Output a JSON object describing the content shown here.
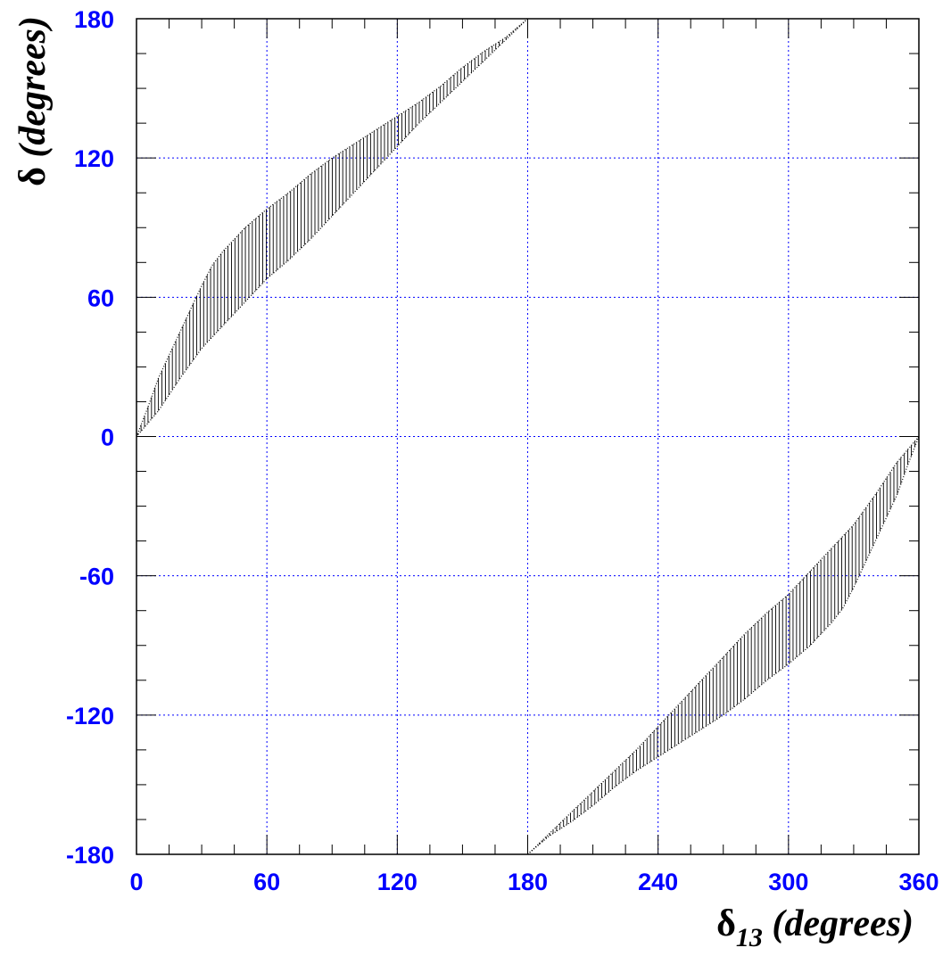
{
  "chart_data": {
    "type": "area",
    "xlabel": "δ13 (degrees)",
    "xlabel_parts": {
      "symbol": "δ",
      "subscript": "13",
      "rest": "(degrees)"
    },
    "ylabel": "δ (degrees)",
    "ylabel_parts": {
      "symbol": "δ",
      "rest": "(degrees)"
    },
    "xlim": [
      0,
      360
    ],
    "ylim": [
      -180,
      180
    ],
    "x_ticks": [
      "0",
      "60",
      "120",
      "180",
      "240",
      "300",
      "360"
    ],
    "y_ticks": [
      "180",
      "120",
      "60",
      "0",
      "-60",
      "-120",
      "-180"
    ],
    "grid": true,
    "grid_color": "#0000ff",
    "label_color": "#0000ff",
    "fill_color": "#000000",
    "fill_style": "vertical hatching",
    "regions": [
      {
        "upper": [
          [
            0,
            0
          ],
          [
            5,
            12
          ],
          [
            10,
            25
          ],
          [
            15,
            35
          ],
          [
            20,
            45
          ],
          [
            25,
            55
          ],
          [
            30,
            65
          ],
          [
            35,
            74
          ],
          [
            40,
            80
          ],
          [
            50,
            90
          ],
          [
            60,
            98
          ],
          [
            70,
            105
          ],
          [
            80,
            113
          ],
          [
            90,
            120
          ],
          [
            100,
            126
          ],
          [
            110,
            132
          ],
          [
            120,
            138
          ],
          [
            130,
            144
          ],
          [
            140,
            151
          ],
          [
            150,
            159
          ],
          [
            160,
            166
          ],
          [
            170,
            172
          ],
          [
            180,
            180
          ]
        ],
        "lower": [
          [
            0,
            0
          ],
          [
            10,
            11
          ],
          [
            20,
            25
          ],
          [
            30,
            38
          ],
          [
            40,
            48
          ],
          [
            50,
            58
          ],
          [
            60,
            68
          ],
          [
            70,
            76
          ],
          [
            80,
            85
          ],
          [
            90,
            95
          ],
          [
            100,
            105
          ],
          [
            110,
            115
          ],
          [
            120,
            125
          ],
          [
            130,
            135
          ],
          [
            140,
            144
          ],
          [
            150,
            153
          ],
          [
            160,
            162
          ],
          [
            170,
            171
          ],
          [
            180,
            180
          ]
        ]
      },
      {
        "upper": [
          [
            180,
            -180
          ],
          [
            190,
            -171
          ],
          [
            200,
            -162
          ],
          [
            210,
            -153
          ],
          [
            220,
            -144
          ],
          [
            230,
            -135
          ],
          [
            240,
            -125
          ],
          [
            250,
            -115
          ],
          [
            260,
            -105
          ],
          [
            270,
            -95
          ],
          [
            280,
            -85
          ],
          [
            290,
            -76
          ],
          [
            300,
            -68
          ],
          [
            310,
            -58
          ],
          [
            320,
            -48
          ],
          [
            330,
            -38
          ],
          [
            340,
            -25
          ],
          [
            350,
            -11
          ],
          [
            360,
            0
          ]
        ],
        "lower": [
          [
            180,
            -180
          ],
          [
            190,
            -172
          ],
          [
            200,
            -166
          ],
          [
            210,
            -159
          ],
          [
            220,
            -151
          ],
          [
            230,
            -144
          ],
          [
            240,
            -138
          ],
          [
            250,
            -132
          ],
          [
            260,
            -126
          ],
          [
            270,
            -120
          ],
          [
            280,
            -113
          ],
          [
            290,
            -105
          ],
          [
            300,
            -98
          ],
          [
            310,
            -90
          ],
          [
            320,
            -80
          ],
          [
            325,
            -74
          ],
          [
            330,
            -65
          ],
          [
            335,
            -55
          ],
          [
            340,
            -45
          ],
          [
            345,
            -35
          ],
          [
            350,
            -25
          ],
          [
            355,
            -12
          ],
          [
            360,
            0
          ]
        ]
      }
    ]
  }
}
